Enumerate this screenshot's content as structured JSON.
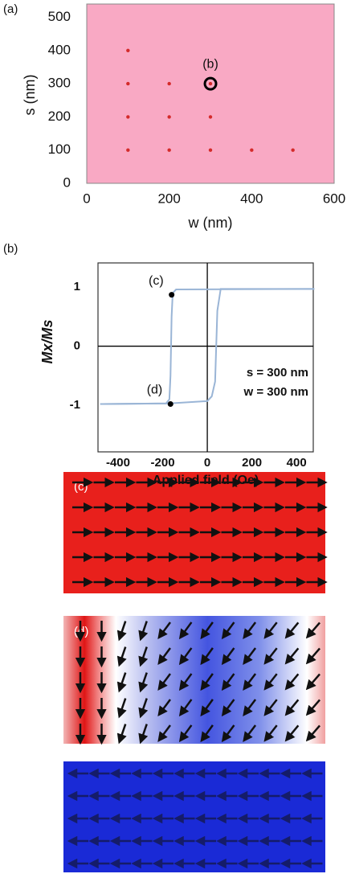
{
  "chart_data": [
    {
      "type": "scatter",
      "panel_label": "(a)",
      "x_label": "w (nm)",
      "y_label": "s (nm)",
      "x": [
        100,
        100,
        200,
        300,
        100,
        200,
        300,
        100,
        200,
        300,
        400,
        500
      ],
      "values": [
        400,
        300,
        300,
        300,
        200,
        200,
        200,
        100,
        100,
        100,
        100,
        100
      ],
      "color": "#d42a2a",
      "background": "#f9a9c4",
      "xlim": [
        0,
        600
      ],
      "xticks": [
        0,
        200,
        400,
        600
      ],
      "ylim": [
        0,
        540
      ],
      "yticks": [
        0,
        100,
        200,
        300,
        400,
        500
      ],
      "highlight": {
        "x": 300,
        "y": 300,
        "label": "(b)"
      }
    },
    {
      "type": "line",
      "panel_label": "(b)",
      "x_label": "Applied field (Oe)",
      "y_label": "Mx/Ms",
      "series": [
        {
          "color": "#9ab5d6",
          "x": [
            480,
            -140,
            -155,
            -160,
            -165,
            -170,
            -185,
            -480
          ],
          "values": [
            0.97,
            0.96,
            0.9,
            0.5,
            -0.5,
            -0.9,
            -0.97,
            -0.98
          ]
        },
        {
          "color": "#9ab5d6",
          "x": [
            -480,
            -170,
            0,
            20,
            35,
            40,
            45,
            60,
            480
          ],
          "values": [
            -0.98,
            -0.97,
            -0.93,
            -0.85,
            -0.6,
            0,
            0.6,
            0.97,
            0.97
          ]
        }
      ],
      "points": [
        {
          "x": -160,
          "y": 0.87,
          "label": "(c)"
        },
        {
          "x": -165,
          "y": -0.98,
          "label": "(d)"
        }
      ],
      "annotations": [
        "s = 300 nm",
        "w = 300 nm"
      ],
      "xlim": [
        -490,
        475
      ],
      "xticks": [
        -400,
        -200,
        0,
        200,
        400
      ],
      "ylim": [
        -1.79,
        1.41
      ],
      "yticks": [
        -1,
        0,
        1
      ]
    }
  ],
  "snapshots": {
    "labels": [
      "(c)",
      "(d)"
    ]
  }
}
